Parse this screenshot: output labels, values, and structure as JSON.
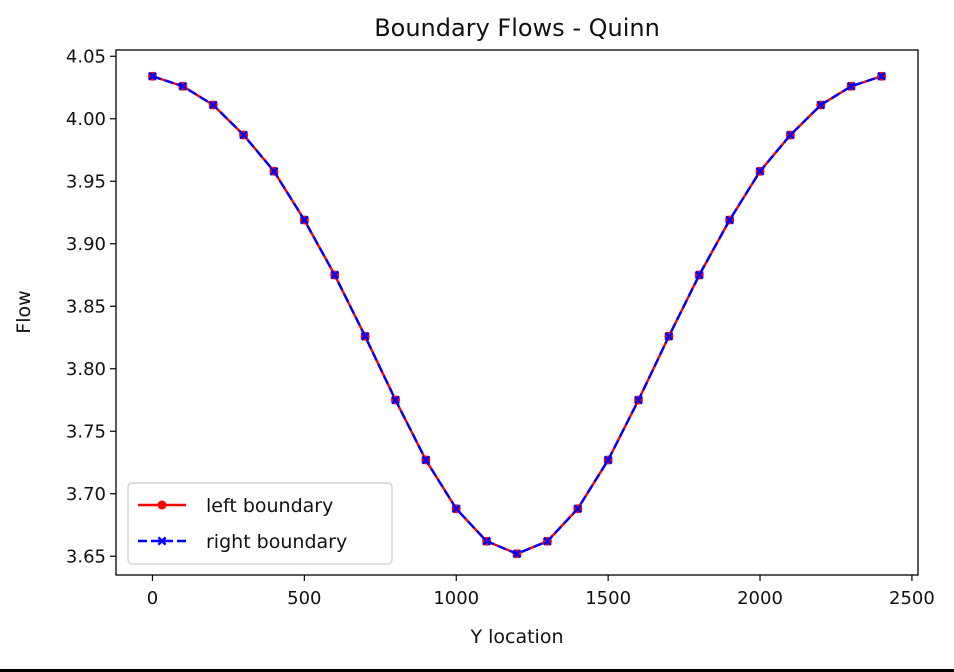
{
  "chart_data": {
    "type": "line",
    "title": "Boundary Flows - Quinn",
    "xlabel": "Y location",
    "ylabel": "Flow",
    "xlim": [
      -120,
      2520
    ],
    "ylim": [
      3.635,
      4.055
    ],
    "xticks": [
      0,
      500,
      1000,
      1500,
      2000,
      2500
    ],
    "yticks": [
      3.65,
      3.7,
      3.75,
      3.8,
      3.85,
      3.9,
      3.95,
      4.0,
      4.05
    ],
    "ytick_labels": [
      "3.65",
      "3.70",
      "3.75",
      "3.80",
      "3.85",
      "3.90",
      "3.95",
      "4.00",
      "4.05"
    ],
    "grid": false,
    "legend_position": "lower-left",
    "x": [
      0,
      100,
      200,
      300,
      400,
      500,
      600,
      700,
      800,
      900,
      1000,
      1100,
      1200,
      1300,
      1400,
      1500,
      1600,
      1700,
      1800,
      1900,
      2000,
      2100,
      2200,
      2300,
      2400
    ],
    "series": [
      {
        "name": "left boundary",
        "color": "#ff0000",
        "style": "solid",
        "marker": "circle",
        "values": [
          4.034,
          4.026,
          4.011,
          3.987,
          3.958,
          3.919,
          3.875,
          3.826,
          3.775,
          3.727,
          3.688,
          3.662,
          3.652,
          3.662,
          3.688,
          3.727,
          3.775,
          3.826,
          3.875,
          3.919,
          3.958,
          3.987,
          4.011,
          4.026,
          4.034
        ]
      },
      {
        "name": "right boundary",
        "color": "#0000ff",
        "style": "dashed",
        "marker": "x",
        "values": [
          4.034,
          4.026,
          4.011,
          3.987,
          3.958,
          3.919,
          3.875,
          3.826,
          3.775,
          3.727,
          3.688,
          3.662,
          3.652,
          3.662,
          3.688,
          3.727,
          3.775,
          3.826,
          3.875,
          3.919,
          3.958,
          3.987,
          4.011,
          4.026,
          4.034
        ]
      }
    ]
  }
}
